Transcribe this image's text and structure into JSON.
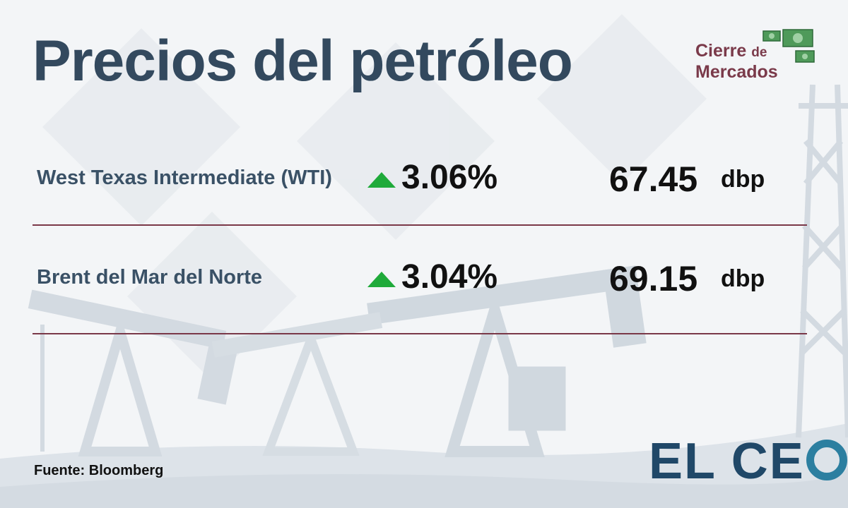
{
  "title": "Precios del petróleo",
  "brand_corner": {
    "line1": "Cierre",
    "line1_small": "de",
    "line2": "Mercados",
    "color": "#7a3a4a"
  },
  "rows": [
    {
      "name": "West Texas Intermediate (WTI)",
      "change": "3.06%",
      "direction": "up",
      "price": "67.45",
      "unit": "dbp"
    },
    {
      "name": "Brent del Mar del Norte",
      "change": "3.04%",
      "direction": "up",
      "price": "69.15",
      "unit": "dbp"
    }
  ],
  "source": "Fuente: Bloomberg",
  "logo": {
    "text_el": "EL",
    "text_ce": "CE",
    "color": "#204868",
    "accent": "#2c7fa0"
  },
  "colors": {
    "title": "#33495e",
    "up_arrow": "#1faa3a",
    "divider": "#7a3848"
  },
  "icons": {
    "trend": "triangle-up-icon",
    "money": "money-bills-icon"
  }
}
